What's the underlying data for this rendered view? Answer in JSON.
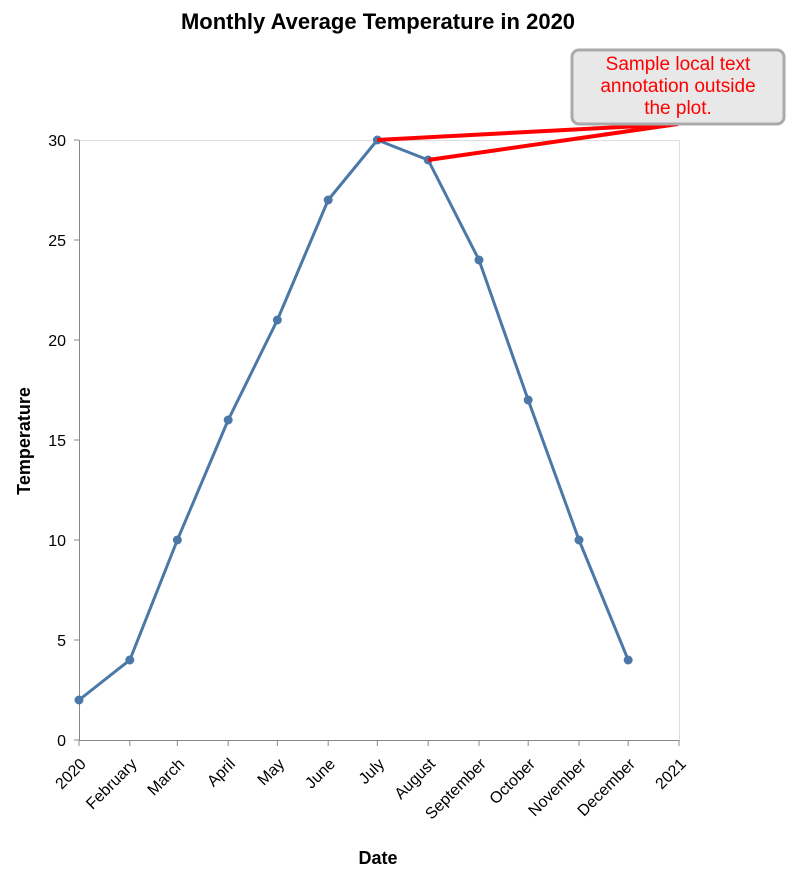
{
  "chart_data": {
    "type": "line",
    "title": "Monthly Average Temperature in 2020",
    "xlabel": "Date",
    "ylabel": "Temperature",
    "x_tick_labels": [
      "2020",
      "February",
      "March",
      "April",
      "May",
      "June",
      "July",
      "August",
      "September",
      "October",
      "November",
      "December",
      "2021"
    ],
    "y_ticks": [
      0,
      5,
      10,
      15,
      20,
      25,
      30
    ],
    "ylim": [
      0,
      30
    ],
    "xlim": [
      "2020-01-01",
      "2021-01-01"
    ],
    "grid": false,
    "series": [
      {
        "x": [
          "2020-01-01",
          "2020-02-01",
          "2020-03-01",
          "2020-04-01",
          "2020-05-01",
          "2020-06-01",
          "2020-07-01",
          "2020-08-01",
          "2020-09-01",
          "2020-10-01",
          "2020-11-01",
          "2020-12-01"
        ],
        "values": [
          2,
          4,
          10,
          16,
          21,
          27,
          30,
          29,
          24,
          17,
          10,
          4
        ],
        "color": "#4c78a8"
      }
    ],
    "annotation": {
      "lines": [
        "Sample local text",
        "annotation outside",
        "the plot."
      ],
      "color": "#ff0000",
      "box_fill": "#e8e8e8",
      "box_border": "#aaaaaa",
      "targets": [
        "2020-07-01",
        "2020-08-01"
      ]
    }
  }
}
